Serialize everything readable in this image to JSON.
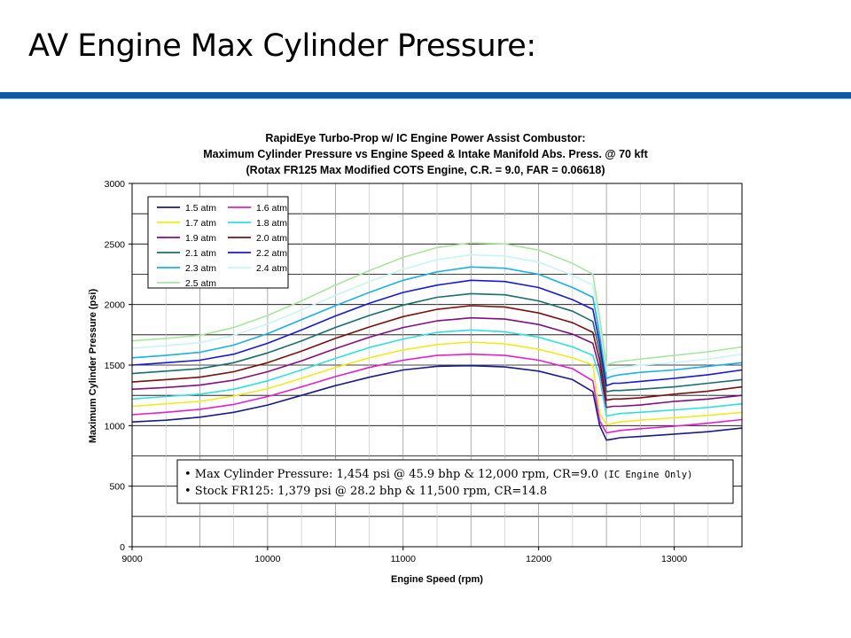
{
  "slide": {
    "title": "AV Engine Max Cylinder Pressure:"
  },
  "colors": {
    "accent_rule": "#0a5aa8"
  },
  "chart_data": {
    "type": "line",
    "title_lines": [
      "RapidEye Turbo-Prop w/ IC Engine Power Assist Combustor:",
      "Maximum Cylinder Pressure vs Engine Speed & Intake Manifold Abs. Press. @ 70 kft",
      "(Rotax FR125 Max Modified COTS Engine, C.R. = 9.0, FAR = 0.06618)"
    ],
    "xlabel": "Engine Speed (rpm)",
    "ylabel": "Maximum Cylinder Pressure (psi)",
    "xlim": [
      9000,
      13500
    ],
    "ylim": [
      0,
      3000
    ],
    "x_ticks": [
      9000,
      10000,
      11000,
      12000,
      13000
    ],
    "y_ticks": [
      0,
      500,
      1000,
      1500,
      2000,
      2500,
      3000
    ],
    "grid": true,
    "legend_position": "top-left",
    "x": [
      9000,
      9250,
      9500,
      9750,
      10000,
      10250,
      10500,
      10750,
      11000,
      11250,
      11500,
      11750,
      12000,
      12250,
      12400,
      12450,
      12500,
      12550,
      12600,
      12750,
      13000,
      13250,
      13500
    ],
    "series": [
      {
        "name": "1.5 atm",
        "color": "#1a1a8c",
        "values": [
          1030,
          1045,
          1070,
          1110,
          1170,
          1250,
          1330,
          1400,
          1460,
          1490,
          1495,
          1485,
          1450,
          1380,
          1280,
          1000,
          880,
          890,
          900,
          910,
          930,
          950,
          980
        ]
      },
      {
        "name": "1.6 atm",
        "color": "#e020d0",
        "values": [
          1090,
          1110,
          1135,
          1175,
          1240,
          1320,
          1405,
          1480,
          1540,
          1580,
          1590,
          1580,
          1540,
          1470,
          1370,
          1040,
          940,
          950,
          960,
          975,
          995,
          1020,
          1050
        ]
      },
      {
        "name": "1.7 atm",
        "color": "#f2ea20",
        "values": [
          1160,
          1180,
          1200,
          1245,
          1305,
          1390,
          1480,
          1560,
          1625,
          1670,
          1690,
          1675,
          1630,
          1560,
          1500,
          1100,
          1010,
          1020,
          1030,
          1045,
          1065,
          1085,
          1110
        ]
      },
      {
        "name": "1.8 atm",
        "color": "#30e0e0",
        "values": [
          1220,
          1240,
          1260,
          1300,
          1370,
          1460,
          1555,
          1645,
          1715,
          1770,
          1790,
          1775,
          1730,
          1650,
          1580,
          1400,
          1080,
          1090,
          1100,
          1110,
          1130,
          1150,
          1180
        ]
      },
      {
        "name": "1.9 atm",
        "color": "#801080",
        "values": [
          1300,
          1315,
          1335,
          1375,
          1445,
          1535,
          1635,
          1730,
          1810,
          1865,
          1890,
          1880,
          1835,
          1755,
          1680,
          1470,
          1150,
          1160,
          1160,
          1170,
          1200,
          1220,
          1250
        ]
      },
      {
        "name": "2.0 atm",
        "color": "#7a1010",
        "values": [
          1360,
          1380,
          1400,
          1445,
          1520,
          1615,
          1720,
          1815,
          1900,
          1960,
          1990,
          1980,
          1930,
          1850,
          1770,
          1540,
          1210,
          1220,
          1220,
          1230,
          1260,
          1285,
          1320
        ]
      },
      {
        "name": "2.1 atm",
        "color": "#1a6e6e",
        "values": [
          1430,
          1450,
          1470,
          1520,
          1600,
          1700,
          1810,
          1910,
          1995,
          2060,
          2090,
          2080,
          2030,
          1945,
          1860,
          1610,
          1280,
          1290,
          1290,
          1300,
          1320,
          1350,
          1380
        ]
      },
      {
        "name": "2.2 atm",
        "color": "#1818d8",
        "values": [
          1500,
          1520,
          1540,
          1590,
          1680,
          1790,
          1905,
          2010,
          2100,
          2160,
          2200,
          2190,
          2140,
          2040,
          1960,
          1680,
          1330,
          1350,
          1350,
          1365,
          1390,
          1420,
          1460
        ]
      },
      {
        "name": "2.3 atm",
        "color": "#1ab0e8",
        "values": [
          1560,
          1580,
          1605,
          1665,
          1760,
          1875,
          1990,
          2100,
          2200,
          2270,
          2310,
          2300,
          2250,
          2140,
          2060,
          1750,
          1390,
          1410,
          1420,
          1440,
          1460,
          1490,
          1520
        ]
      },
      {
        "name": "2.4 atm",
        "color": "#c8f4f8",
        "values": [
          1640,
          1660,
          1685,
          1745,
          1840,
          1955,
          2075,
          2190,
          2290,
          2370,
          2410,
          2400,
          2350,
          2240,
          2160,
          1820,
          1450,
          1470,
          1480,
          1500,
          1520,
          1550,
          1590
        ]
      },
      {
        "name": "2.5 atm",
        "color": "#a8e6a0",
        "values": [
          1700,
          1720,
          1745,
          1810,
          1910,
          2030,
          2160,
          2280,
          2390,
          2470,
          2510,
          2500,
          2450,
          2340,
          2250,
          1890,
          1500,
          1520,
          1530,
          1550,
          1580,
          1610,
          1650
        ]
      }
    ],
    "annotations": [
      {
        "text": "• Max Cylinder Pressure: 1,454 psi @ 45.9 bhp & 12,000 rpm, CR=9.0",
        "small": "(IC Engine Only)"
      },
      {
        "text": "• Stock FR125: 1,379 psi @ 28.2 bhp & 11,500 rpm, CR=14.8",
        "small": ""
      }
    ]
  }
}
